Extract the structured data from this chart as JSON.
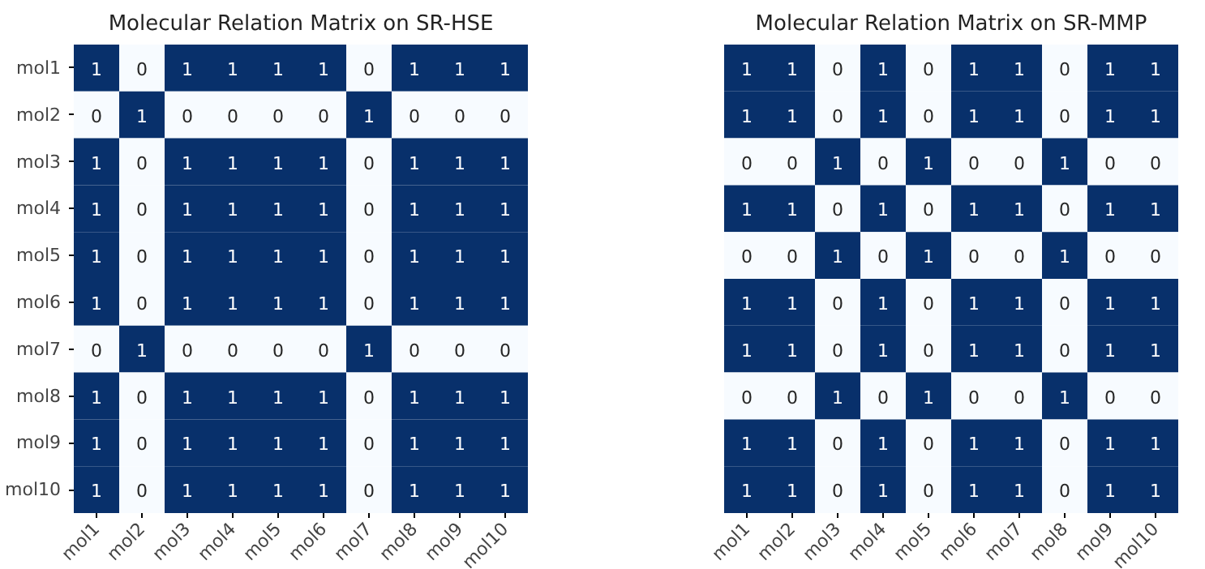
{
  "chart_data": [
    {
      "type": "heatmap",
      "title": "Molecular Relation Matrix on SR-HSE",
      "categories": [
        "mol1",
        "mol2",
        "mol3",
        "mol4",
        "mol5",
        "mol6",
        "mol7",
        "mol8",
        "mol9",
        "mol10"
      ],
      "y_categories": [
        "mol1",
        "mol2",
        "mol3",
        "mol4",
        "mol5",
        "mol6",
        "mol7",
        "mol8",
        "mol9",
        "mol10"
      ],
      "colors": [
        "#f7fbff",
        "#08306b"
      ],
      "grid": false,
      "data_labels": true,
      "cells": [
        [
          1,
          0,
          1,
          1,
          1,
          1,
          0,
          1,
          1,
          1
        ],
        [
          0,
          1,
          0,
          0,
          0,
          0,
          1,
          0,
          0,
          0
        ],
        [
          1,
          0,
          1,
          1,
          1,
          1,
          0,
          1,
          1,
          1
        ],
        [
          1,
          0,
          1,
          1,
          1,
          1,
          0,
          1,
          1,
          1
        ],
        [
          1,
          0,
          1,
          1,
          1,
          1,
          0,
          1,
          1,
          1
        ],
        [
          1,
          0,
          1,
          1,
          1,
          1,
          0,
          1,
          1,
          1
        ],
        [
          0,
          1,
          0,
          0,
          0,
          0,
          1,
          0,
          0,
          0
        ],
        [
          1,
          0,
          1,
          1,
          1,
          1,
          0,
          1,
          1,
          1
        ],
        [
          1,
          0,
          1,
          1,
          1,
          1,
          0,
          1,
          1,
          1
        ],
        [
          1,
          0,
          1,
          1,
          1,
          1,
          0,
          1,
          1,
          1
        ]
      ]
    },
    {
      "type": "heatmap",
      "title": "Molecular Relation Matrix on SR-MMP",
      "categories": [
        "mol1",
        "mol2",
        "mol3",
        "mol4",
        "mol5",
        "mol6",
        "mol7",
        "mol8",
        "mol9",
        "mol10"
      ],
      "y_categories": [
        null,
        null,
        null,
        null,
        null,
        null,
        null,
        null,
        null,
        null
      ],
      "tick_labels": "x",
      "colors": [
        "#f7fbff",
        "#08306b"
      ],
      "grid": false,
      "data_labels": true,
      "cells": [
        [
          1,
          1,
          0,
          1,
          0,
          1,
          1,
          0,
          1,
          1
        ],
        [
          1,
          1,
          0,
          1,
          0,
          1,
          1,
          0,
          1,
          1
        ],
        [
          0,
          0,
          1,
          0,
          1,
          0,
          0,
          1,
          0,
          0
        ],
        [
          1,
          1,
          0,
          1,
          0,
          1,
          1,
          0,
          1,
          1
        ],
        [
          0,
          0,
          1,
          0,
          1,
          0,
          0,
          1,
          0,
          0
        ],
        [
          1,
          1,
          0,
          1,
          0,
          1,
          1,
          0,
          1,
          1
        ],
        [
          1,
          1,
          0,
          1,
          0,
          1,
          1,
          0,
          1,
          1
        ],
        [
          0,
          0,
          1,
          0,
          1,
          0,
          0,
          1,
          0,
          0
        ],
        [
          1,
          1,
          0,
          1,
          0,
          1,
          1,
          0,
          1,
          1
        ],
        [
          1,
          1,
          0,
          1,
          0,
          1,
          1,
          0,
          1,
          1
        ]
      ]
    }
  ]
}
